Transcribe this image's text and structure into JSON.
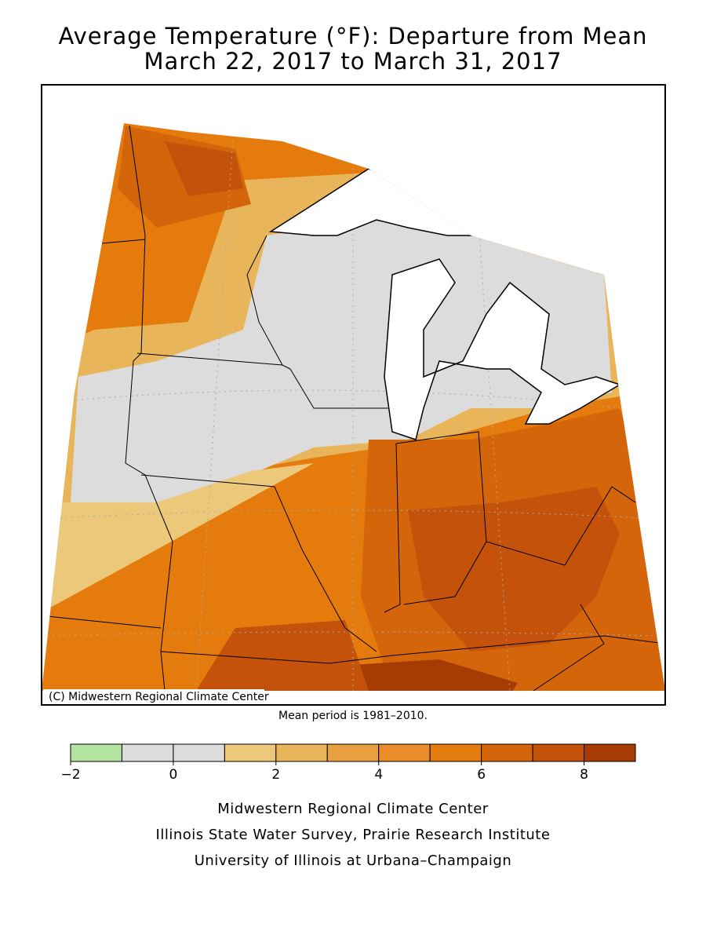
{
  "header": {
    "title_line1": "Average Temperature (°F): Departure from Mean",
    "title_line2": "March 22, 2017 to March 31, 2017"
  },
  "map": {
    "copyright": "(C) Midwestern Regional Climate Center",
    "note": "Mean period is 1981–2010."
  },
  "legend": {
    "bins": [
      -2,
      -1,
      0,
      1,
      2,
      3,
      4,
      5,
      6,
      7,
      8,
      9
    ],
    "colors": [
      "#b3e3a0",
      "#dcdcdc",
      "#dcdcdc",
      "#ebc87a",
      "#e8b55a",
      "#e9a040",
      "#ea8c2a",
      "#e57b0c",
      "#d4650a",
      "#c4520a",
      "#a63c04"
    ],
    "ticks": [
      {
        "value": -2,
        "label": "−2"
      },
      0,
      2,
      4,
      6,
      8
    ]
  },
  "credits": [
    "Midwestern Regional Climate Center",
    "Illinois State Water Survey, Prairie Research Institute",
    "University of Illinois at Urbana–Champaign"
  ]
}
